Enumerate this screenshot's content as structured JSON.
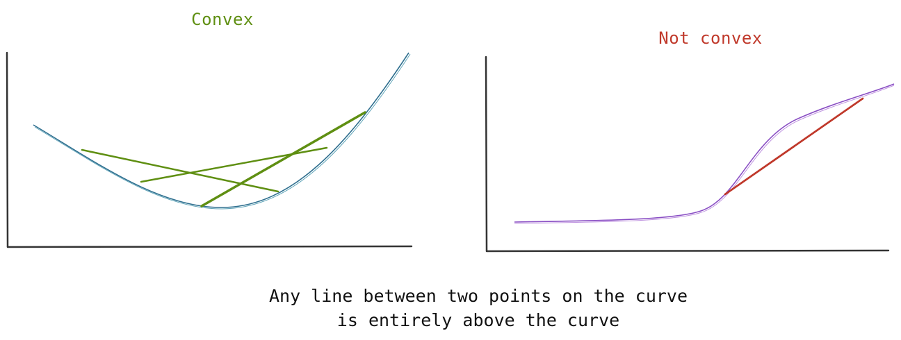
{
  "panels": {
    "left": {
      "title": "Convex",
      "title_color": "#5f8f12",
      "curve_color": "#2f6f8f",
      "chord_color": "#5f8f12"
    },
    "right": {
      "title": "Not convex",
      "title_color": "#c0392b",
      "curve_color": "#8a4fc4",
      "chord_color": "#c0392b"
    }
  },
  "caption": {
    "line1": "Any line between two points on the curve",
    "line2": "is entirely above the curve"
  }
}
